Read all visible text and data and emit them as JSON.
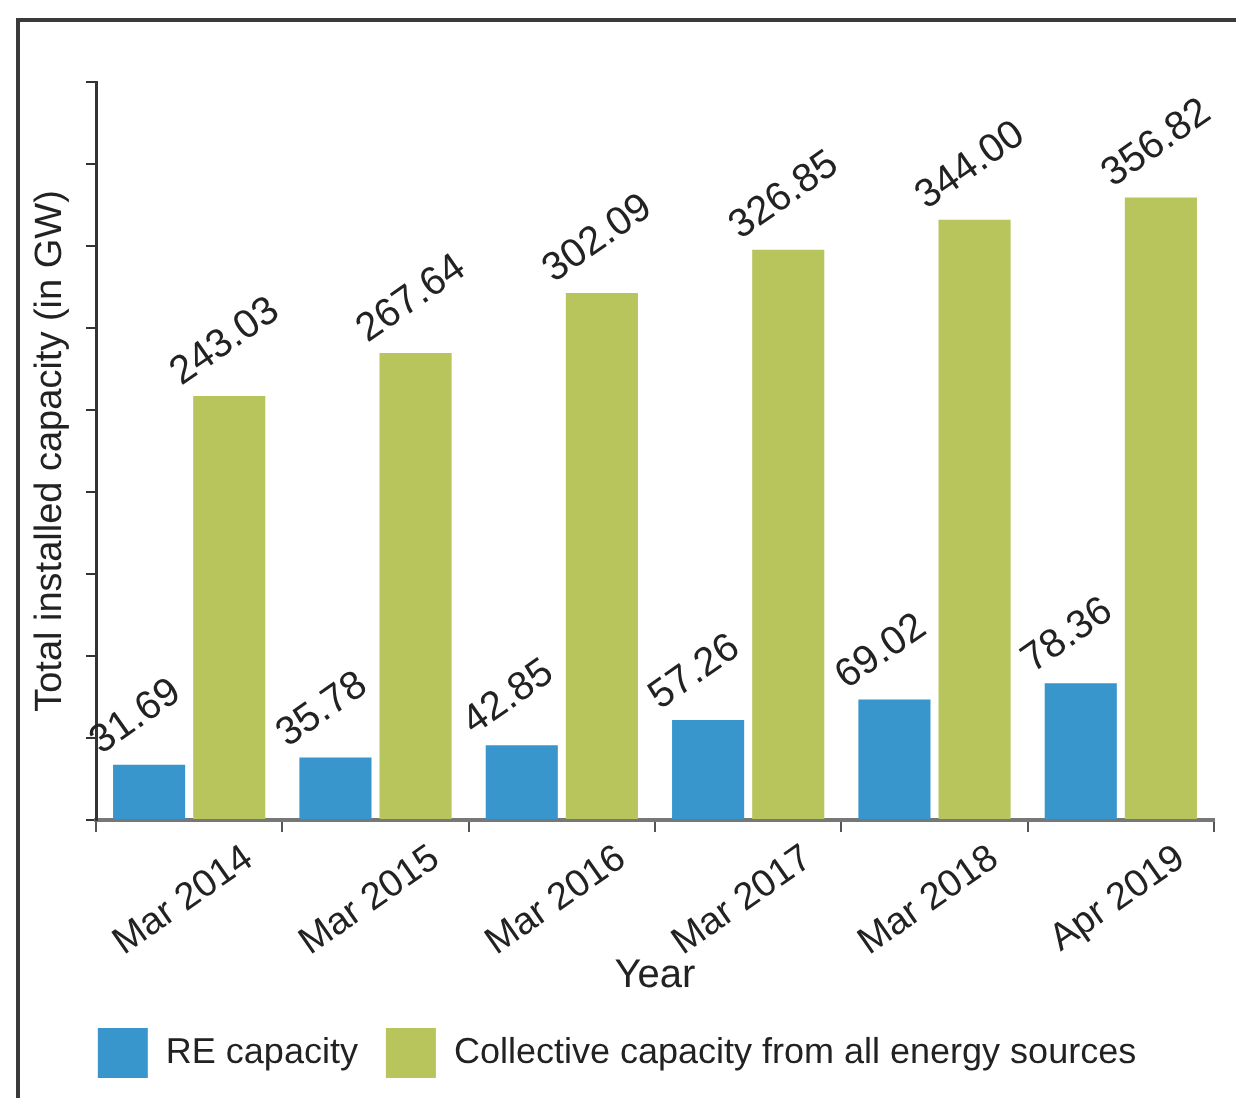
{
  "chart_data": {
    "type": "bar",
    "xlabel": "Year",
    "ylabel": "Total installed capacity (in GW)",
    "categories": [
      "Mar 2014",
      "Mar 2015",
      "Mar 2016",
      "Mar 2017",
      "Mar 2018",
      "Apr 2019"
    ],
    "series": [
      {
        "name": "RE capacity",
        "color": "#3896cc",
        "values": [
          31.69,
          35.78,
          42.85,
          57.26,
          69.02,
          78.36
        ],
        "value_labels": [
          "31.69",
          "35.78",
          "42.85",
          "57.26",
          "69.02",
          "78.36"
        ]
      },
      {
        "name": "Collective capacity from all energy sources",
        "color": "#b8c55c",
        "values": [
          243.03,
          267.64,
          302.09,
          326.85,
          344.0,
          356.82
        ],
        "value_labels": [
          "243.03",
          "267.64",
          "302.09",
          "326.85",
          "344.00",
          "356.82"
        ]
      }
    ],
    "ylim": [
      0,
      423
    ],
    "yticks": [
      {
        "value": 0,
        "label": null
      },
      {
        "value": 47,
        "label": null
      },
      {
        "value": 94,
        "label": null
      },
      {
        "value": 141,
        "label": null
      },
      {
        "value": 188,
        "label": null
      },
      {
        "value": 235,
        "label": null
      },
      {
        "value": 282,
        "label": null
      },
      {
        "value": 329,
        "label": null
      },
      {
        "value": 376,
        "label": null
      },
      {
        "value": 423,
        "label": null
      }
    ],
    "tick_labels": "x",
    "grid": false,
    "legend": "bottom"
  }
}
